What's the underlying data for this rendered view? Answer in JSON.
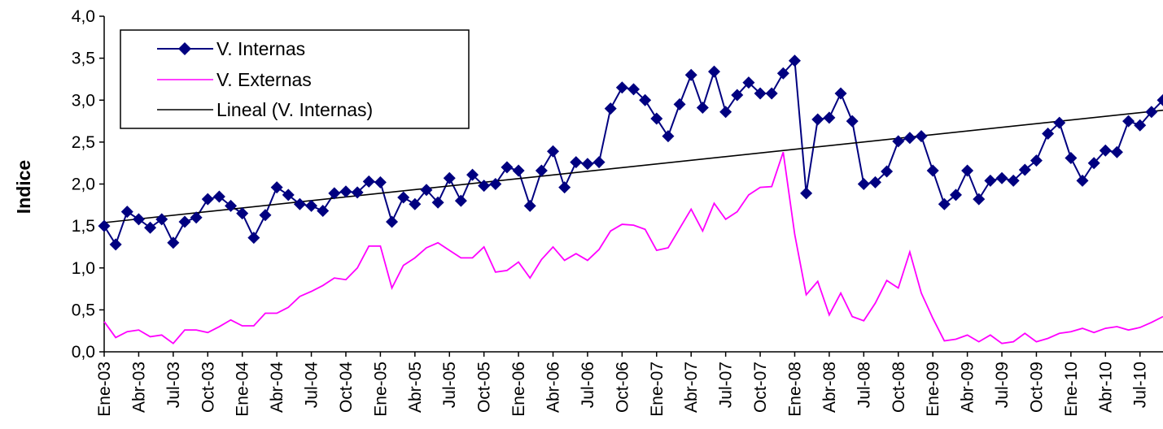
{
  "chart_data": {
    "type": "line",
    "title": "",
    "xlabel": "",
    "ylabel": "Indice",
    "ylim": [
      0,
      4
    ],
    "yticks": [
      "0,0",
      "0,5",
      "1,0",
      "1,5",
      "2,0",
      "2,5",
      "3,0",
      "3,5",
      "4,0"
    ],
    "x_tick_labels": [
      "Ene-03",
      "Abr-03",
      "Jul-03",
      "Oct-03",
      "Ene-04",
      "Abr-04",
      "Jul-04",
      "Oct-04",
      "Ene-05",
      "Abr-05",
      "Jul-05",
      "Oct-05",
      "Ene-06",
      "Abr-06",
      "Jul-06",
      "Oct-06",
      "Ene-07",
      "Abr-07",
      "Jul-07",
      "Oct-07",
      "Ene-08",
      "Abr-08",
      "Jul-08",
      "Oct-08",
      "Ene-09",
      "Abr-09",
      "Jul-09",
      "Oct-09",
      "Ene-10",
      "Abr-10",
      "Jul-10"
    ],
    "grid": false,
    "legend_position": "top-left",
    "series": [
      {
        "name": "V. Internas",
        "color": "#000080",
        "marker": "diamond",
        "values": [
          1.5,
          1.28,
          1.67,
          1.58,
          1.48,
          1.58,
          1.3,
          1.55,
          1.6,
          1.82,
          1.85,
          1.74,
          1.65,
          1.36,
          1.63,
          1.96,
          1.87,
          1.76,
          1.74,
          1.68,
          1.89,
          1.91,
          1.9,
          2.03,
          2.02,
          1.55,
          1.84,
          1.76,
          1.93,
          1.78,
          2.07,
          1.8,
          2.11,
          1.98,
          2.0,
          2.2,
          2.16,
          1.74,
          2.16,
          2.39,
          1.96,
          2.26,
          2.24,
          2.26,
          2.9,
          3.15,
          3.13,
          3.0,
          2.78,
          2.57,
          2.95,
          3.3,
          2.91,
          3.34,
          2.86,
          3.06,
          3.21,
          3.08,
          3.08,
          3.32,
          3.47,
          1.89,
          2.77,
          2.79,
          3.08,
          2.75,
          2.0,
          2.02,
          2.15,
          2.51,
          2.55,
          2.57,
          2.16,
          1.76,
          1.87,
          2.16,
          1.82,
          2.04,
          2.07,
          2.04,
          2.17,
          2.28,
          2.6,
          2.73,
          2.31,
          2.04,
          2.25,
          2.4,
          2.38,
          2.75,
          2.7,
          2.86,
          3.0
        ]
      },
      {
        "name": "V. Externas",
        "color": "#ff00ff",
        "values": [
          0.36,
          0.17,
          0.24,
          0.26,
          0.18,
          0.2,
          0.1,
          0.26,
          0.26,
          0.23,
          0.3,
          0.38,
          0.31,
          0.31,
          0.46,
          0.46,
          0.53,
          0.66,
          0.72,
          0.79,
          0.88,
          0.86,
          1.0,
          1.26,
          1.26,
          0.76,
          1.03,
          1.12,
          1.24,
          1.3,
          1.21,
          1.12,
          1.12,
          1.25,
          0.95,
          0.97,
          1.07,
          0.88,
          1.1,
          1.25,
          1.09,
          1.17,
          1.09,
          1.22,
          1.44,
          1.52,
          1.51,
          1.46,
          1.21,
          1.24,
          1.47,
          1.7,
          1.44,
          1.77,
          1.58,
          1.67,
          1.87,
          1.96,
          1.97,
          2.38,
          1.4,
          0.68,
          0.84,
          0.44,
          0.7,
          0.42,
          0.37,
          0.58,
          0.85,
          0.76,
          1.19,
          0.7,
          0.4,
          0.13,
          0.15,
          0.2,
          0.12,
          0.2,
          0.1,
          0.12,
          0.22,
          0.12,
          0.16,
          0.22,
          0.24,
          0.28,
          0.23,
          0.28,
          0.3,
          0.26,
          0.29,
          0.35,
          0.42
        ]
      },
      {
        "name": "Lineal (V. Internas)",
        "color": "#000000",
        "type": "linear-trend",
        "start_value": 1.54,
        "end_value": 2.88
      }
    ]
  }
}
